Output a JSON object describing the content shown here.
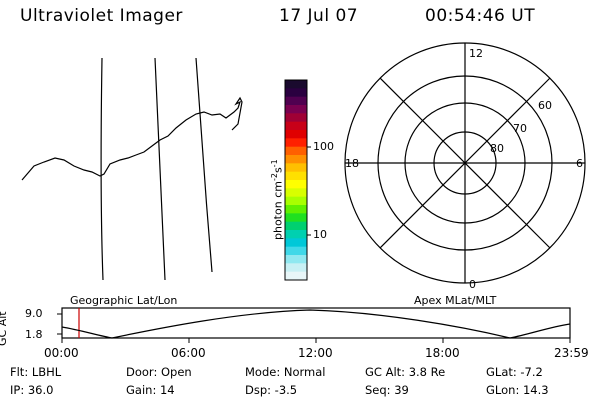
{
  "header": {
    "title": "Ultraviolet Imager",
    "date": "17 Jul 07",
    "time": "00:54:46 UT"
  },
  "colorbar": {
    "unit_text": "photon cm",
    "unit_exp1": "-2",
    "unit_s": "s",
    "unit_exp2": "-1",
    "ticks": [
      "100",
      "10"
    ],
    "colors": [
      "#1a0a2e",
      "#2a0040",
      "#500050",
      "#7a0050",
      "#a00035",
      "#c80018",
      "#e00000",
      "#ff2000",
      "#ff6000",
      "#ff9000",
      "#ffc000",
      "#ffe000",
      "#ffff00",
      "#d8ff00",
      "#a8ff00",
      "#60f000",
      "#20e020",
      "#00d070",
      "#00d0b0",
      "#00c8d8",
      "#40d8e8",
      "#90e8f0",
      "#c8f0f4",
      "#e8f6f8"
    ]
  },
  "polar": {
    "hour_labels": [
      "12",
      "18",
      "6",
      "0"
    ],
    "lat_labels": [
      "60",
      "70",
      "80"
    ]
  },
  "timeline": {
    "y_axis_label": "GC Alt",
    "y_ticks": [
      "9.0",
      "1.8"
    ],
    "left_title": "Geographic Lat/Lon",
    "right_title": "Apex MLat/MLT",
    "x_ticks": [
      "00:00",
      "06:00",
      "12:00",
      "18:00",
      "23:59"
    ],
    "marker_color": "#cc0000"
  },
  "footer": {
    "flt": "Flt: LBHL",
    "door": "Door: Open",
    "mode": "Mode: Normal",
    "gcalt": "GC Alt: 3.8 Re",
    "glat": "GLat:  -7.2",
    "ip": "IP: 36.0",
    "gain": "Gain: 14",
    "dsp": "Dsp:   -3.5",
    "seq": "Seq: 39",
    "glon": "GLon:  14.3"
  }
}
